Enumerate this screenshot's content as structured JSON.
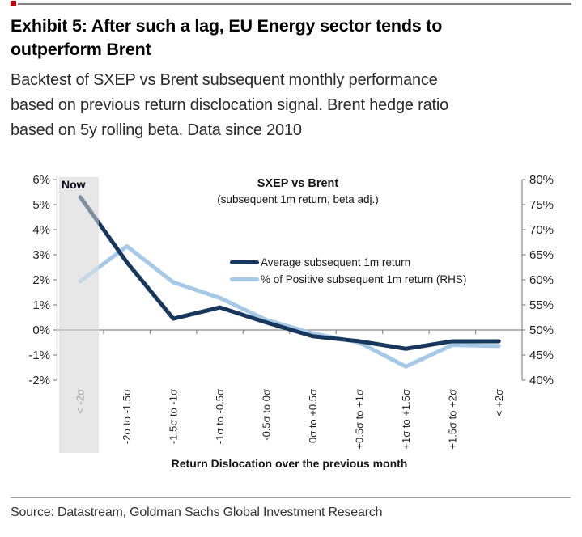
{
  "header": {
    "title_lines": [
      "Exhibit 5: After such a lag, EU Energy sector tends to",
      "outperform Brent"
    ],
    "subtitle_lines": [
      "Backtest of SXEP vs Brent subsequent monthly performance",
      "based on previous return disclocation signal. Brent hedge ratio",
      "based on 5y rolling beta. Data since 2010"
    ]
  },
  "chart": {
    "title": "SXEP vs Brent",
    "subtitle": "(subsequent 1m return, beta adj.)",
    "now_label": "Now",
    "x_axis_title": "Return Dislocation over the previous month"
  },
  "footer": {
    "source": "Source: Datastream, Goldman Sachs Global Investment Research"
  },
  "colors": {
    "navy": "#17375d",
    "light_blue": "#a6c9e8",
    "highlight_band": "#e7e7e7",
    "axis_gray": "#8a8a8a",
    "top_rule_gray": "#7f7f7f",
    "logo_red": "#c00000"
  },
  "chart_data": {
    "type": "line",
    "title": "SXEP vs Brent",
    "subtitle": "(subsequent 1m return, beta adj.)",
    "xlabel": "Return Dislocation over the previous month",
    "categories": [
      "< -2σ",
      "-2σ to -1.5σ",
      "-1.5σ to -1σ",
      "-1σ to -0.5σ",
      "-0.5σ to 0σ",
      "0σ to +0.5σ",
      "+0.5σ to +1σ",
      "+1σ to +1.5σ",
      "+1.5σ to +2σ",
      "< +2σ"
    ],
    "series": [
      {
        "name": "Average subsequent 1m return",
        "axis": "left",
        "color": "#17375d",
        "values": [
          5.3,
          2.7,
          0.45,
          0.9,
          0.3,
          -0.25,
          -0.45,
          -0.75,
          -0.45,
          -0.45
        ]
      },
      {
        "name": "% of Positive subsequent 1m return (RHS)",
        "axis": "right",
        "color": "#a6c9e8",
        "values": [
          59.7,
          66.7,
          59.5,
          56.4,
          52.0,
          49.3,
          47.5,
          42.7,
          47.0,
          46.8
        ]
      }
    ],
    "left_axis": {
      "min": -2,
      "max": 6,
      "step": 1,
      "format": "percent"
    },
    "right_axis": {
      "min": 40,
      "max": 80,
      "step": 5,
      "format": "percent"
    },
    "highlight": {
      "category_index": 0,
      "label": "Now"
    },
    "grid": false,
    "legend_position": "center"
  }
}
